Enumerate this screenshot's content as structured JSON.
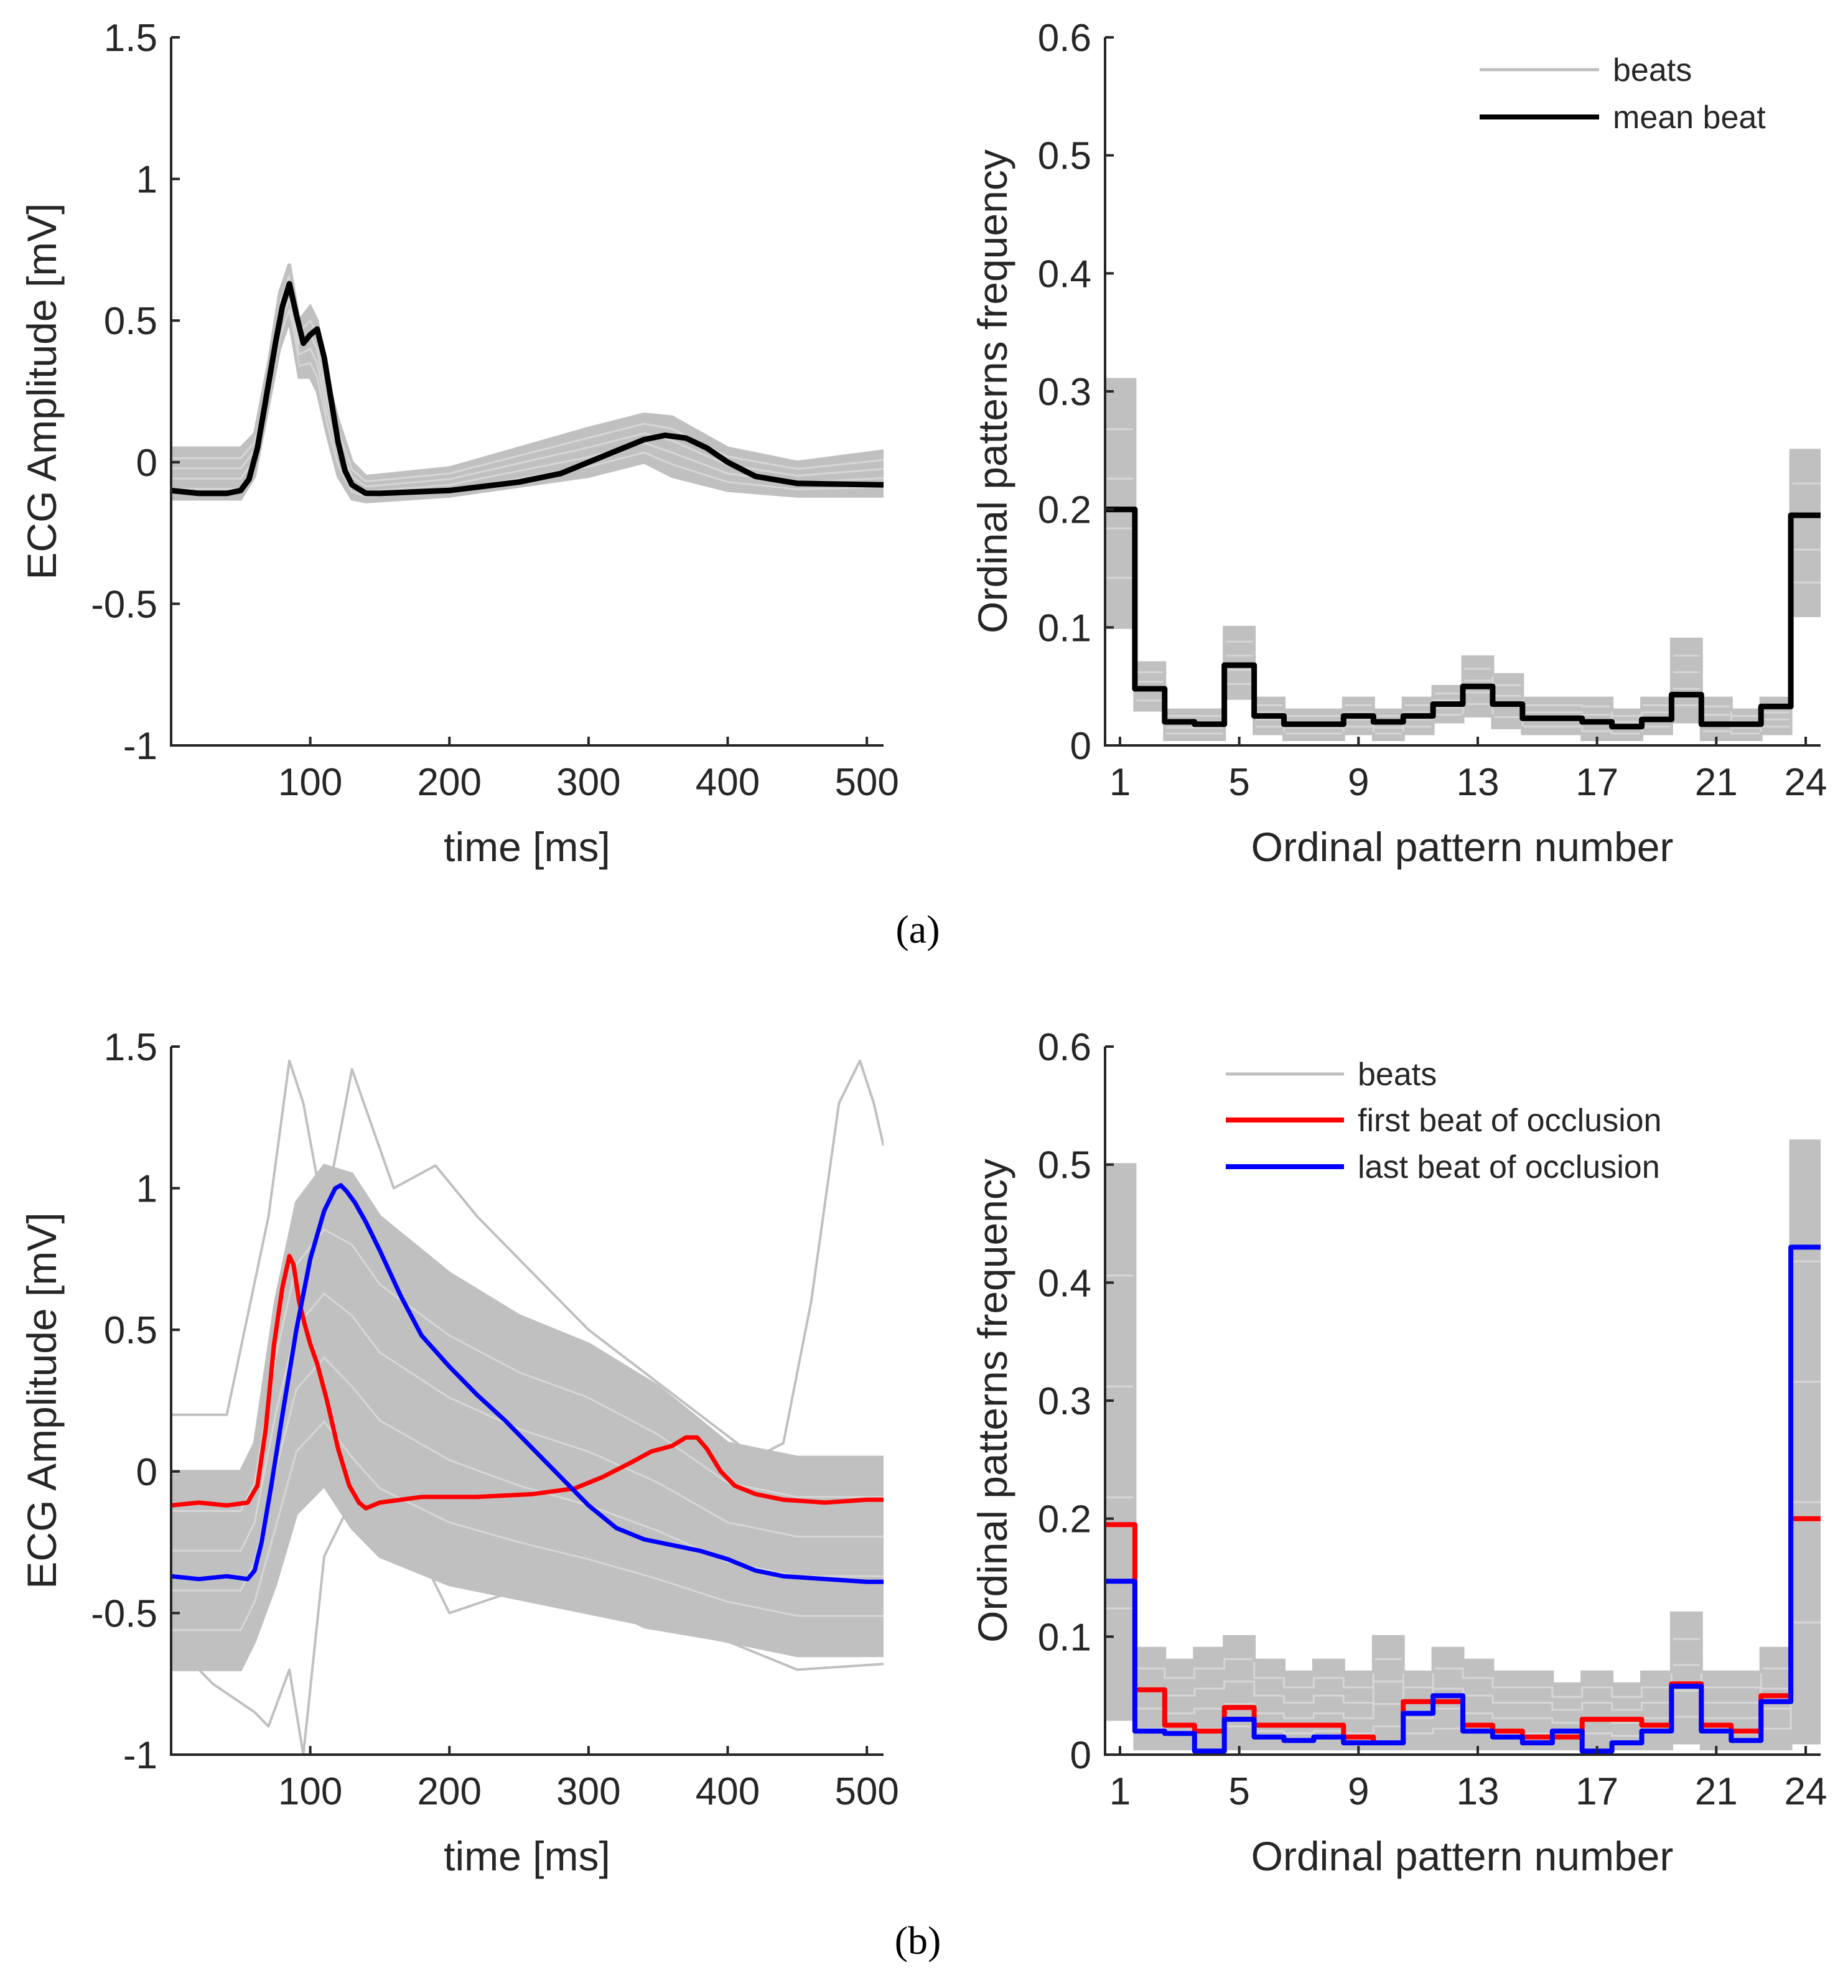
{
  "figure": {
    "panel_a_label": "(a)",
    "panel_b_label": "(b)"
  },
  "colors": {
    "beats": "#c0c0c0",
    "mean_beat": "#000000",
    "first_beat": "#ff0000",
    "last_beat": "#0000ff",
    "axis": "#262626"
  },
  "chart_data": [
    {
      "id": "a-ecg",
      "type": "line",
      "xlabel": "time [ms]",
      "ylabel": "ECG Amplitude [mV]",
      "xlim": [
        0,
        512
      ],
      "ylim": [
        -1,
        1.5
      ],
      "xticks": [
        100,
        200,
        300,
        400,
        500
      ],
      "yticks": [
        -1,
        -0.5,
        0,
        0.5,
        1,
        1.5
      ],
      "series": [
        {
          "name": "beats",
          "color": "#c0c0c0",
          "role": "band",
          "width": 5,
          "x": [
            0,
            50,
            60,
            70,
            78,
            85,
            92,
            100,
            105,
            112,
            120,
            130,
            140,
            200,
            300,
            340,
            360,
            400,
            450,
            512
          ],
          "upper": [
            0.05,
            0.05,
            0.1,
            0.35,
            0.6,
            0.7,
            0.5,
            0.55,
            0.5,
            0.3,
            0.15,
            0.0,
            -0.05,
            -0.02,
            0.12,
            0.17,
            0.16,
            0.05,
            0.0,
            0.04
          ],
          "lower": [
            -0.13,
            -0.13,
            -0.05,
            0.2,
            0.4,
            0.5,
            0.3,
            0.3,
            0.25,
            0.1,
            -0.05,
            -0.13,
            -0.14,
            -0.12,
            -0.05,
            0.0,
            -0.05,
            -0.1,
            -0.12,
            -0.12
          ]
        },
        {
          "name": "mean beat",
          "color": "#000000",
          "role": "line",
          "width": 9,
          "x": [
            0,
            20,
            40,
            50,
            56,
            62,
            68,
            75,
            80,
            85,
            90,
            95,
            100,
            105,
            110,
            115,
            120,
            125,
            130,
            140,
            150,
            200,
            250,
            280,
            300,
            320,
            340,
            355,
            370,
            385,
            400,
            420,
            450,
            512
          ],
          "y": [
            -0.1,
            -0.11,
            -0.11,
            -0.1,
            -0.06,
            0.05,
            0.22,
            0.42,
            0.55,
            0.63,
            0.52,
            0.42,
            0.45,
            0.47,
            0.37,
            0.22,
            0.07,
            -0.03,
            -0.08,
            -0.11,
            -0.11,
            -0.1,
            -0.07,
            -0.04,
            0.0,
            0.04,
            0.08,
            0.095,
            0.085,
            0.05,
            0.0,
            -0.05,
            -0.075,
            -0.08
          ]
        }
      ]
    },
    {
      "id": "a-op",
      "type": "line",
      "step": true,
      "xlabel": "Ordinal pattern number",
      "ylabel": "Ordinal patterns frequency",
      "xlim": [
        0.5,
        24.5
      ],
      "ylim": [
        0,
        0.6
      ],
      "xticks": [
        1,
        5,
        9,
        13,
        17,
        21,
        24
      ],
      "yticks": [
        0,
        0.1,
        0.2,
        0.3,
        0.4,
        0.5,
        0.6
      ],
      "legend": [
        "beats",
        "mean beat"
      ],
      "legend_position": "top-right",
      "series": [
        {
          "name": "beats",
          "color": "#c0c0c0",
          "role": "band",
          "width": 5,
          "upper": [
            0.31,
            0.07,
            0.03,
            0.03,
            0.1,
            0.04,
            0.03,
            0.03,
            0.04,
            0.03,
            0.04,
            0.05,
            0.075,
            0.06,
            0.04,
            0.04,
            0.04,
            0.03,
            0.04,
            0.09,
            0.04,
            0.03,
            0.04,
            0.25
          ],
          "lower": [
            0.1,
            0.03,
            0.005,
            0.005,
            0.04,
            0.01,
            0.005,
            0.005,
            0.01,
            0.005,
            0.01,
            0.02,
            0.025,
            0.015,
            0.01,
            0.01,
            0.005,
            0.005,
            0.01,
            0.02,
            0.005,
            0.005,
            0.01,
            0.11
          ]
        },
        {
          "name": "mean beat",
          "color": "#000000",
          "role": "line",
          "width": 9,
          "y": [
            0.2,
            0.048,
            0.02,
            0.018,
            0.068,
            0.025,
            0.018,
            0.018,
            0.025,
            0.02,
            0.025,
            0.035,
            0.05,
            0.035,
            0.023,
            0.023,
            0.02,
            0.016,
            0.022,
            0.043,
            0.018,
            0.018,
            0.033,
            0.195
          ]
        }
      ]
    },
    {
      "id": "b-ecg",
      "type": "line",
      "xlabel": "time [ms]",
      "ylabel": "ECG Amplitude [mV]",
      "xlim": [
        0,
        512
      ],
      "ylim": [
        -1,
        1.5
      ],
      "xticks": [
        100,
        200,
        300,
        400,
        500
      ],
      "yticks": [
        -1,
        -0.5,
        0,
        0.5,
        1,
        1.5
      ],
      "series": [
        {
          "name": "beats",
          "color": "#c0c0c0",
          "role": "band",
          "width": 5,
          "x": [
            0,
            50,
            60,
            75,
            90,
            110,
            130,
            150,
            200,
            250,
            300,
            350,
            400,
            450,
            512
          ],
          "upper": [
            0.0,
            0.0,
            0.1,
            0.6,
            0.95,
            1.08,
            1.05,
            0.9,
            0.7,
            0.55,
            0.45,
            0.3,
            0.1,
            0.05,
            0.05
          ],
          "lower": [
            -0.7,
            -0.7,
            -0.6,
            -0.4,
            -0.15,
            -0.05,
            -0.2,
            -0.3,
            -0.4,
            -0.45,
            -0.5,
            -0.55,
            -0.6,
            -0.65,
            -0.65
          ]
        },
        {
          "name": "beats outlier",
          "color": "#c0c0c0",
          "role": "thin",
          "width": 4,
          "x": [
            0,
            40,
            70,
            85,
            95,
            110,
            130,
            160,
            190,
            220,
            260,
            300,
            340,
            380,
            420,
            440,
            460,
            480,
            495,
            505,
            512
          ],
          "y": [
            0.2,
            0.2,
            0.9,
            1.45,
            1.3,
            0.9,
            1.42,
            1.0,
            1.08,
            0.9,
            0.7,
            0.5,
            0.35,
            0.2,
            0.05,
            0.1,
            0.6,
            1.3,
            1.45,
            1.3,
            1.15
          ]
        },
        {
          "name": "beats outlier low",
          "color": "#c0c0c0",
          "role": "thin",
          "width": 4,
          "x": [
            0,
            30,
            60,
            70,
            85,
            95,
            110,
            130,
            170,
            200,
            260,
            300,
            340,
            400,
            450,
            512
          ],
          "y": [
            -0.6,
            -0.75,
            -0.85,
            -0.9,
            -0.7,
            -1.0,
            -0.3,
            -0.1,
            -0.2,
            -0.5,
            -0.4,
            -0.45,
            -0.55,
            -0.6,
            -0.7,
            -0.68
          ]
        },
        {
          "name": "first beat of occlusion",
          "color": "#ff0000",
          "role": "line",
          "width": 7,
          "x": [
            0,
            20,
            40,
            55,
            62,
            68,
            74,
            80,
            85,
            88,
            92,
            96,
            100,
            105,
            112,
            120,
            128,
            135,
            140,
            150,
            180,
            220,
            260,
            290,
            310,
            330,
            345,
            360,
            370,
            378,
            385,
            395,
            405,
            420,
            440,
            470,
            500,
            512
          ],
          "y": [
            -0.12,
            -0.11,
            -0.12,
            -0.11,
            -0.05,
            0.15,
            0.45,
            0.65,
            0.76,
            0.73,
            0.6,
            0.52,
            0.45,
            0.38,
            0.25,
            0.08,
            -0.05,
            -0.11,
            -0.13,
            -0.11,
            -0.09,
            -0.09,
            -0.08,
            -0.06,
            -0.02,
            0.03,
            0.07,
            0.09,
            0.12,
            0.12,
            0.08,
            0.0,
            -0.05,
            -0.08,
            -0.1,
            -0.11,
            -0.1,
            -0.1
          ]
        },
        {
          "name": "last beat of occlusion",
          "color": "#0000ff",
          "role": "line",
          "width": 7,
          "x": [
            0,
            20,
            40,
            55,
            60,
            65,
            72,
            80,
            90,
            100,
            110,
            118,
            122,
            126,
            132,
            140,
            150,
            165,
            180,
            200,
            220,
            240,
            260,
            280,
            300,
            320,
            340,
            360,
            380,
            400,
            420,
            440,
            470,
            500,
            512
          ],
          "y": [
            -0.37,
            -0.38,
            -0.37,
            -0.38,
            -0.35,
            -0.25,
            -0.05,
            0.2,
            0.5,
            0.75,
            0.92,
            1.0,
            1.01,
            0.99,
            0.95,
            0.88,
            0.78,
            0.62,
            0.48,
            0.37,
            0.27,
            0.18,
            0.08,
            -0.02,
            -0.12,
            -0.2,
            -0.24,
            -0.26,
            -0.28,
            -0.31,
            -0.35,
            -0.37,
            -0.38,
            -0.39,
            -0.39
          ]
        }
      ]
    },
    {
      "id": "b-op",
      "type": "line",
      "step": true,
      "xlabel": "Ordinal pattern number",
      "ylabel": "Ordinal patterns frequency",
      "xlim": [
        0.5,
        24.5
      ],
      "ylim": [
        0,
        0.6
      ],
      "xticks": [
        1,
        5,
        9,
        13,
        17,
        21,
        24
      ],
      "yticks": [
        0,
        0.1,
        0.2,
        0.3,
        0.4,
        0.5,
        0.6
      ],
      "legend": [
        "beats",
        "first beat of occlusion",
        "last beat of occlusion"
      ],
      "legend_position": "top-right",
      "series": [
        {
          "name": "beats",
          "color": "#c0c0c0",
          "role": "band",
          "width": 5,
          "upper": [
            0.5,
            0.09,
            0.08,
            0.09,
            0.1,
            0.08,
            0.07,
            0.08,
            0.07,
            0.1,
            0.07,
            0.09,
            0.08,
            0.07,
            0.07,
            0.06,
            0.07,
            0.06,
            0.07,
            0.12,
            0.07,
            0.07,
            0.09,
            0.52
          ],
          "lower": [
            0.03,
            0.005,
            0.005,
            0.005,
            0.005,
            0.005,
            0.005,
            0.005,
            0.005,
            0.005,
            0.005,
            0.005,
            0.005,
            0.005,
            0.005,
            0.005,
            0.005,
            0.005,
            0.005,
            0.01,
            0.005,
            0.005,
            0.005,
            0.01
          ]
        },
        {
          "name": "first beat of occlusion",
          "color": "#ff0000",
          "role": "line",
          "width": 8,
          "y": [
            0.195,
            0.055,
            0.025,
            0.02,
            0.04,
            0.025,
            0.025,
            0.025,
            0.015,
            0.01,
            0.045,
            0.045,
            0.025,
            0.02,
            0.015,
            0.015,
            0.03,
            0.03,
            0.025,
            0.06,
            0.025,
            0.02,
            0.05,
            0.2
          ]
        },
        {
          "name": "last beat of occlusion",
          "color": "#0000ff",
          "role": "line",
          "width": 8,
          "y": [
            0.147,
            0.02,
            0.018,
            0.003,
            0.03,
            0.015,
            0.012,
            0.015,
            0.01,
            0.01,
            0.035,
            0.05,
            0.02,
            0.015,
            0.01,
            0.02,
            0.003,
            0.01,
            0.02,
            0.058,
            0.02,
            0.012,
            0.045,
            0.43
          ]
        }
      ]
    }
  ]
}
